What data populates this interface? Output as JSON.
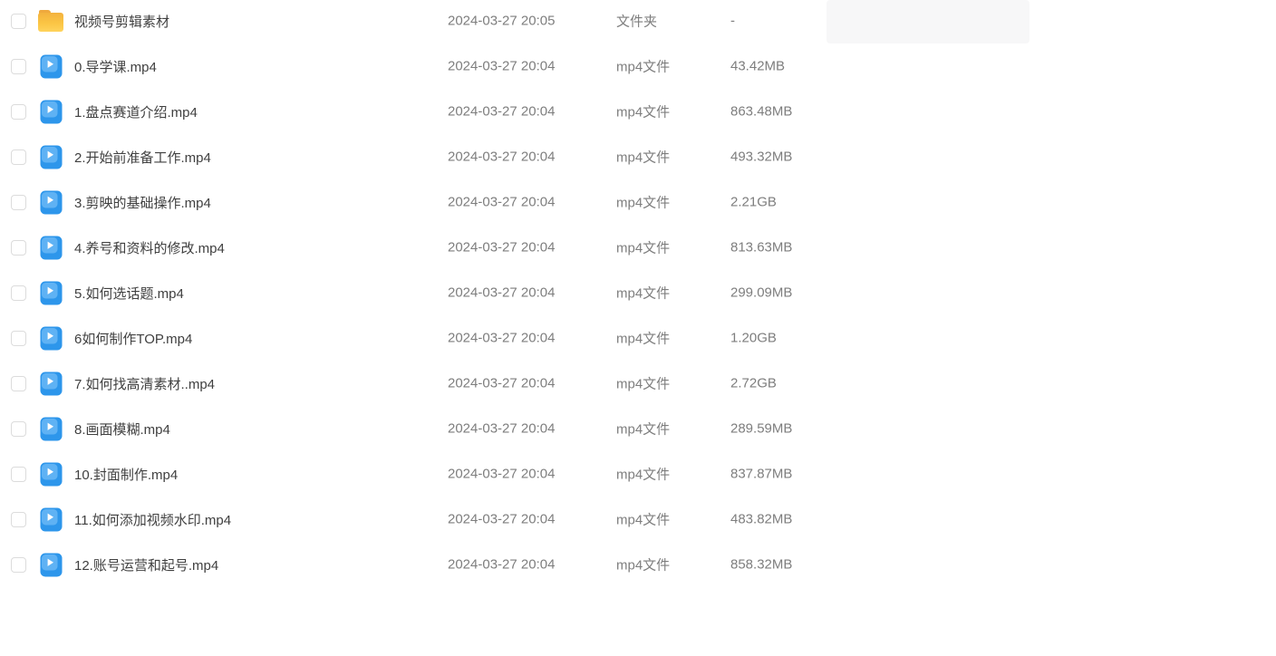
{
  "colors": {
    "video_blue": "#2D96EB",
    "video_blue_light": "#5FB2F4",
    "play_white": "#FFFFFF",
    "folder_tab": "#EFA93D",
    "folder_dark": "#F3B23E",
    "folder_yellow": "#FBC544",
    "folder_light": "#FFD35C",
    "text_primary": "#404040",
    "text_secondary": "#7E7E7E",
    "checkbox_border": "#DCDCDC",
    "hover_bg": "#F7F7F8"
  },
  "files": [
    {
      "name": "视频号剪辑素材",
      "date": "2024-03-27 20:05",
      "type": "文件夹",
      "size": "-",
      "icon": "folder-icon"
    },
    {
      "name": "0.导学课.mp4",
      "date": "2024-03-27 20:04",
      "type": "mp4文件",
      "size": "43.42MB",
      "icon": "video-file-icon"
    },
    {
      "name": "1.盘点赛道介绍.mp4",
      "date": "2024-03-27 20:04",
      "type": "mp4文件",
      "size": "863.48MB",
      "icon": "video-file-icon"
    },
    {
      "name": "2.开始前准备工作.mp4",
      "date": "2024-03-27 20:04",
      "type": "mp4文件",
      "size": "493.32MB",
      "icon": "video-file-icon"
    },
    {
      "name": "3.剪映的基础操作.mp4",
      "date": "2024-03-27 20:04",
      "type": "mp4文件",
      "size": "2.21GB",
      "icon": "video-file-icon"
    },
    {
      "name": "4.养号和资料的修改.mp4",
      "date": "2024-03-27 20:04",
      "type": "mp4文件",
      "size": "813.63MB",
      "icon": "video-file-icon"
    },
    {
      "name": "5.如何选话题.mp4",
      "date": "2024-03-27 20:04",
      "type": "mp4文件",
      "size": "299.09MB",
      "icon": "video-file-icon"
    },
    {
      "name": "6如何制作TOP.mp4",
      "date": "2024-03-27 20:04",
      "type": "mp4文件",
      "size": "1.20GB",
      "icon": "video-file-icon"
    },
    {
      "name": "7.如何找高清素材..mp4",
      "date": "2024-03-27 20:04",
      "type": "mp4文件",
      "size": "2.72GB",
      "icon": "video-file-icon"
    },
    {
      "name": "8.画面模糊.mp4",
      "date": "2024-03-27 20:04",
      "type": "mp4文件",
      "size": "289.59MB",
      "icon": "video-file-icon"
    },
    {
      "name": "10.封面制作.mp4",
      "date": "2024-03-27 20:04",
      "type": "mp4文件",
      "size": "837.87MB",
      "icon": "video-file-icon"
    },
    {
      "name": "11.如何添加视频水印.mp4",
      "date": "2024-03-27 20:04",
      "type": "mp4文件",
      "size": "483.82MB",
      "icon": "video-file-icon"
    },
    {
      "name": "12.账号运营和起号.mp4",
      "date": "2024-03-27 20:04",
      "type": "mp4文件",
      "size": "858.32MB",
      "icon": "video-file-icon"
    }
  ]
}
